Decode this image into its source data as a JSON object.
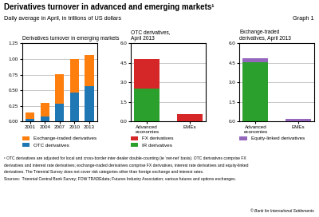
{
  "title": "Derivatives turnover in advanced and emerging markets¹",
  "subtitle": "Daily average in April, in trillions of US dollars",
  "annotations": [
    "Graph 1",
    "¹ OTC derivatives are adjusted for local and cross-border inter-dealer double-counting (ie ‘net-net’ basis). OTC derivatives comprise FX",
    "derivatives and interest rate derivatives; exchange-traded derivatives comprise FX derivatives, interest rate derivatives and equity-linked",
    "derivatives. The Triennial Survey does not cover risk categories other than foreign exchange and interest rates.",
    "Sources:  Triennial Central Bank Survey; FOW TRADEdata; Futures Industry Association; various futures and options exchanges.",
    "© Bank for International Settlements"
  ],
  "chart_data": [
    {
      "type": "bar",
      "stacked": true,
      "grid": true,
      "legend": "upper left",
      "title": "Derivatives turnover in emerging markets",
      "categories": [
        "2001",
        "2004",
        "2007",
        "2010",
        "2013"
      ],
      "series": [
        {
          "name": "OTC derivatives",
          "color": "#1f77b4",
          "values": [
            0.04,
            0.08,
            0.28,
            0.46,
            0.56
          ]
        },
        {
          "name": "Exchange-traded derivatives",
          "color": "#ff7f0e",
          "values": [
            0.1,
            0.22,
            0.48,
            0.54,
            0.5
          ]
        }
      ],
      "ylim": [
        0,
        1.25
      ],
      "yticks": [
        {
          "value": 0,
          "label": "0.00"
        },
        0.25,
        {
          "value": 0.5,
          "label": "0.50"
        },
        0.75,
        {
          "value": 1,
          "label": "1.00"
        },
        1.25
      ]
    },
    {
      "type": "bar",
      "stacked": true,
      "grid": true,
      "legend": "upper left",
      "title": "OTC derivatives,\nApril 2013",
      "categories": [
        "Advanced\neconomies",
        "EMEs"
      ],
      "series": [
        {
          "name": "IR derivatives",
          "color": "#2ca02c",
          "values": [
            2.55,
            0.05
          ]
        },
        {
          "name": "FX derivatives",
          "color": "#d62728",
          "values": [
            2.25,
            0.55
          ]
        }
      ],
      "ylim": [
        0,
        6.0
      ],
      "yticks": [
        {
          "value": 0,
          "label": "0.0"
        },
        1.5,
        {
          "value": 3,
          "label": "3.0"
        },
        4.5,
        {
          "value": 6,
          "label": "6.0"
        }
      ]
    },
    {
      "type": "bar",
      "stacked": true,
      "grid": true,
      "legend": "upper left",
      "title": "Exchange-traded\nderivatives, April 2013",
      "categories": [
        "Advanced\neconomies",
        "EMEs"
      ],
      "series": [
        {
          "color": "#2ca02c",
          "values": [
            4.55,
            0.02
          ]
        },
        {
          "name": "Equity-linked derivatives",
          "color": "#9467bd",
          "values": [
            0.32,
            0.18
          ]
        }
      ],
      "ylim": [
        0,
        6.0
      ],
      "yticks": [
        {
          "value": 0,
          "label": "0.0"
        },
        1.5,
        {
          "value": 3,
          "label": "3.0"
        },
        4.5,
        {
          "value": 6,
          "label": "6.0"
        }
      ]
    }
  ]
}
